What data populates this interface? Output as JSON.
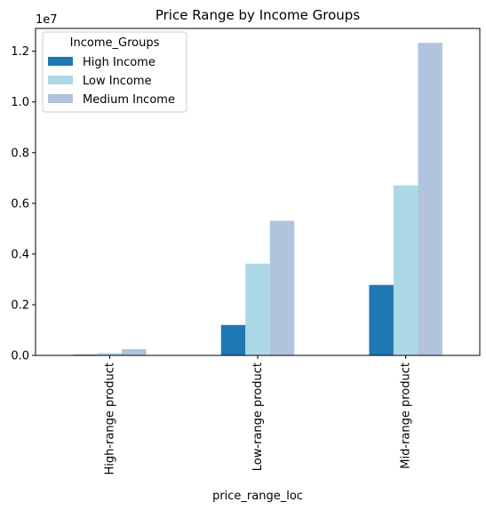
{
  "chart_data": {
    "type": "bar",
    "title": "Price Range by Income Groups",
    "xlabel": "price_range_loc",
    "ylabel": "",
    "y_scale_label": "1e7",
    "categories": [
      "High-range product",
      "Low-range product",
      "Mid-range product"
    ],
    "series": [
      {
        "name": "High Income",
        "color": "#1f77b4",
        "values": [
          0.003,
          0.12,
          0.278
        ]
      },
      {
        "name": "Low Income",
        "color": "#add8e6",
        "values": [
          0.009,
          0.362,
          0.671
        ]
      },
      {
        "name": "Medium Income",
        "color": "#b0c4de",
        "values": [
          0.025,
          0.531,
          1.233
        ]
      }
    ],
    "ylim": [
      0,
      1.29
    ],
    "yticks": [
      0.0,
      0.2,
      0.4,
      0.6,
      0.8,
      1.0,
      1.2
    ],
    "ytick_labels": [
      "0.0",
      "0.2",
      "0.4",
      "0.6",
      "0.8",
      "1.0",
      "1.2"
    ],
    "legend": {
      "title": "Income_Groups",
      "position": "top-left"
    }
  }
}
